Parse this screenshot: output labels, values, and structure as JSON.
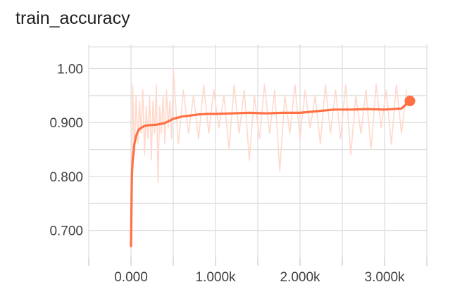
{
  "chart_data": {
    "type": "line",
    "title": "train_accuracy",
    "xlabel": "",
    "ylabel": "",
    "xlim": [
      -500,
      3500
    ],
    "ylim": [
      0.65,
      1.045
    ],
    "x_ticks": [
      0,
      1000,
      2000,
      3000
    ],
    "x_tick_labels": [
      "0.000",
      "1.000k",
      "2.000k",
      "3.000k"
    ],
    "x_minor_ticks": [
      -500,
      500,
      1500,
      2500,
      3500
    ],
    "y_ticks": [
      0.7,
      0.8,
      0.9,
      1.0
    ],
    "y_tick_labels": [
      "0.700",
      "0.800",
      "0.900",
      "1.00"
    ],
    "grid": true,
    "legend": "none",
    "series": [
      {
        "role": "smoothed",
        "color": "#ff7043",
        "x": [
          0,
          10,
          20,
          40,
          60,
          80,
          100,
          150,
          200,
          300,
          400,
          500,
          600,
          700,
          800,
          900,
          1000,
          1200,
          1400,
          1600,
          1800,
          2000,
          2200,
          2400,
          2600,
          2800,
          3000,
          3200,
          3300
        ],
        "y": [
          0.671,
          0.8,
          0.83,
          0.86,
          0.875,
          0.883,
          0.888,
          0.893,
          0.895,
          0.896,
          0.899,
          0.907,
          0.911,
          0.913,
          0.915,
          0.916,
          0.916,
          0.917,
          0.918,
          0.917,
          0.918,
          0.918,
          0.921,
          0.924,
          0.924,
          0.925,
          0.924,
          0.926,
          0.94
        ]
      },
      {
        "role": "raw",
        "color": "#ffd9cc",
        "x": [
          0,
          20,
          40,
          60,
          80,
          100,
          120,
          140,
          160,
          180,
          200,
          220,
          240,
          260,
          280,
          300,
          320,
          340,
          360,
          380,
          400,
          420,
          440,
          460,
          480,
          500,
          560,
          620,
          680,
          740,
          800,
          860,
          920,
          980,
          1040,
          1100,
          1160,
          1220,
          1280,
          1340,
          1400,
          1460,
          1520,
          1580,
          1640,
          1700,
          1760,
          1820,
          1880,
          1940,
          2000,
          2060,
          2120,
          2180,
          2240,
          2300,
          2360,
          2420,
          2480,
          2540,
          2600,
          2660,
          2720,
          2780,
          2840,
          2900,
          2960,
          3020,
          3080,
          3140,
          3200,
          3260
        ],
        "y": [
          0.68,
          0.97,
          0.84,
          0.95,
          0.86,
          0.94,
          0.88,
          0.96,
          0.84,
          0.93,
          0.87,
          0.95,
          0.83,
          0.94,
          0.88,
          0.97,
          0.79,
          0.93,
          0.88,
          0.95,
          0.86,
          0.96,
          0.89,
          0.94,
          0.87,
          1.0,
          0.86,
          0.96,
          0.88,
          0.95,
          0.87,
          0.97,
          0.88,
          0.96,
          0.89,
          0.95,
          0.85,
          0.97,
          0.88,
          0.96,
          0.83,
          0.95,
          0.87,
          0.97,
          0.88,
          0.96,
          0.81,
          0.95,
          0.88,
          0.97,
          0.87,
          0.96,
          0.89,
          0.95,
          0.86,
          0.97,
          0.88,
          0.96,
          0.87,
          0.97,
          0.84,
          0.95,
          0.88,
          0.96,
          0.85,
          0.97,
          0.89,
          0.96,
          0.86,
          0.97,
          0.88,
          0.96
        ]
      }
    ],
    "end_marker": {
      "x": 3300,
      "y": 0.94,
      "color": "#ff7043"
    }
  }
}
